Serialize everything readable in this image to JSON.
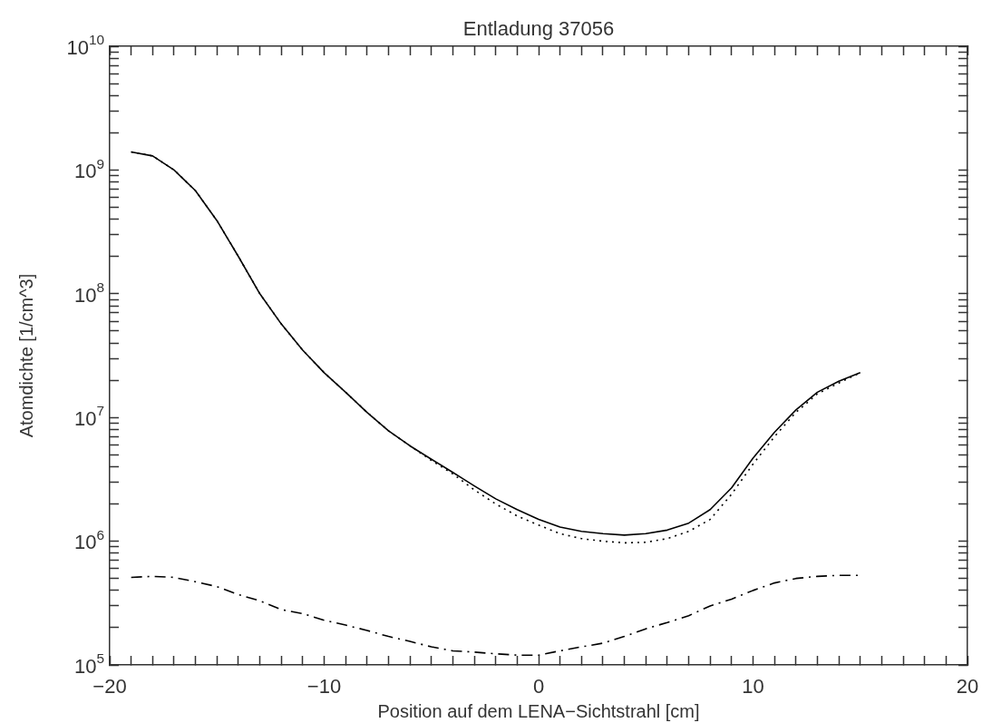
{
  "chart_data": {
    "type": "line",
    "title": "Entladung 37056",
    "xlabel": "Position auf dem LENA−Sichtstrahl [cm]",
    "ylabel": "Atomdichte [1/cm^3]",
    "log": "y",
    "grid": false,
    "legend": false,
    "marker": "none",
    "xlim": [
      -20,
      20
    ],
    "xticks": [
      {
        "value": -20,
        "label": "−20"
      },
      {
        "value": -19,
        "label": null
      },
      {
        "value": -18,
        "label": null
      },
      {
        "value": -17,
        "label": null
      },
      {
        "value": -16,
        "label": null
      },
      {
        "value": -15,
        "label": null
      },
      {
        "value": -14,
        "label": null
      },
      {
        "value": -13,
        "label": null
      },
      {
        "value": -12,
        "label": null
      },
      {
        "value": -11,
        "label": null
      },
      {
        "value": -10,
        "label": "−10"
      },
      {
        "value": -9,
        "label": null
      },
      {
        "value": -8,
        "label": null
      },
      {
        "value": -7,
        "label": null
      },
      {
        "value": -6,
        "label": null
      },
      {
        "value": -5,
        "label": null
      },
      {
        "value": -4,
        "label": null
      },
      {
        "value": -3,
        "label": null
      },
      {
        "value": -2,
        "label": null
      },
      {
        "value": -1,
        "label": null
      },
      0,
      {
        "value": 1,
        "label": null
      },
      {
        "value": 2,
        "label": null
      },
      {
        "value": 3,
        "label": null
      },
      {
        "value": 4,
        "label": null
      },
      {
        "value": 5,
        "label": null
      },
      {
        "value": 6,
        "label": null
      },
      {
        "value": 7,
        "label": null
      },
      {
        "value": 8,
        "label": null
      },
      {
        "value": 9,
        "label": null
      },
      10,
      {
        "value": 11,
        "label": null
      },
      {
        "value": 12,
        "label": null
      },
      {
        "value": 13,
        "label": null
      },
      {
        "value": 14,
        "label": null
      },
      {
        "value": 15,
        "label": null
      },
      {
        "value": 16,
        "label": null
      },
      {
        "value": 17,
        "label": null
      },
      {
        "value": 18,
        "label": null
      },
      {
        "value": 19,
        "label": null
      },
      20
    ],
    "ylim": [
      100000,
      10000000000
    ],
    "yticks": [
      {
        "value": 100000,
        "label": "10$^{5}$"
      },
      {
        "value": 200000,
        "label": null
      },
      {
        "value": 300000,
        "label": null
      },
      {
        "value": 400000,
        "label": null
      },
      {
        "value": 500000,
        "label": null
      },
      {
        "value": 600000,
        "label": null
      },
      {
        "value": 700000,
        "label": null
      },
      {
        "value": 800000,
        "label": null
      },
      {
        "value": 900000,
        "label": null
      },
      {
        "value": 1000000,
        "label": "10$^{6}$"
      },
      {
        "value": 2000000,
        "label": null
      },
      {
        "value": 3000000,
        "label": null
      },
      {
        "value": 4000000,
        "label": null
      },
      {
        "value": 5000000,
        "label": null
      },
      {
        "value": 6000000,
        "label": null
      },
      {
        "value": 7000000,
        "label": null
      },
      {
        "value": 8000000,
        "label": null
      },
      {
        "value": 9000000,
        "label": null
      },
      {
        "value": 10000000,
        "label": "10$^{7}$"
      },
      {
        "value": 20000000,
        "label": null
      },
      {
        "value": 30000000,
        "label": null
      },
      {
        "value": 40000000,
        "label": null
      },
      {
        "value": 50000000,
        "label": null
      },
      {
        "value": 60000000,
        "label": null
      },
      {
        "value": 70000000,
        "label": null
      },
      {
        "value": 80000000,
        "label": null
      },
      {
        "value": 90000000,
        "label": null
      },
      {
        "value": 100000000,
        "label": "10$^{8}$"
      },
      {
        "value": 200000000,
        "label": null
      },
      {
        "value": 300000000,
        "label": null
      },
      {
        "value": 400000000,
        "label": null
      },
      {
        "value": 500000000,
        "label": null
      },
      {
        "value": 600000000,
        "label": null
      },
      {
        "value": 700000000,
        "label": null
      },
      {
        "value": 800000000,
        "label": null
      },
      {
        "value": 900000000,
        "label": null
      },
      {
        "value": 1000000000,
        "label": "10$^{9}$"
      },
      {
        "value": 2000000000,
        "label": null
      },
      {
        "value": 3000000000,
        "label": null
      },
      {
        "value": 4000000000,
        "label": null
      },
      {
        "value": 5000000000,
        "label": null
      },
      {
        "value": 6000000000,
        "label": null
      },
      {
        "value": 7000000000,
        "label": null
      },
      {
        "value": 8000000000,
        "label": null
      },
      {
        "value": 9000000000,
        "label": null
      },
      {
        "value": 10000000000,
        "label": "10$^{10}$"
      }
    ],
    "x": [
      -19,
      -18,
      -17,
      -16,
      -15,
      -14,
      -13,
      -12,
      -11,
      -10,
      -9,
      -8,
      -7,
      -6,
      -5,
      -4,
      -3,
      -2,
      -1,
      0,
      1,
      2,
      3,
      4,
      5,
      6,
      7,
      8,
      9,
      10,
      11,
      12,
      13,
      14,
      15
    ],
    "series": [
      {
        "color": "#000000",
        "line_style": "solid",
        "values": [
          1400000000,
          1300000000,
          1000000000,
          680000000,
          390000000,
          200000000,
          100000000,
          57000000,
          35000000,
          23000000,
          16000000,
          11000000,
          7800000,
          5900000,
          4600000,
          3600000,
          2800000,
          2200000,
          1800000,
          1500000,
          1300000,
          1200000,
          1150000,
          1120000,
          1150000,
          1230000,
          1400000,
          1800000,
          2700000,
          4700000,
          7600000,
          11500000,
          16000000,
          19600000,
          23000000
        ]
      },
      {
        "color": "#000000",
        "line_style": "dotted",
        "values": [
          1400000000,
          1300000000,
          1000000000,
          680000000,
          390000000,
          200000000,
          100000000,
          57000000,
          35000000,
          23000000,
          16000000,
          11000000,
          7800000,
          5900000,
          4500000,
          3500000,
          2600000,
          2000000,
          1600000,
          1350000,
          1150000,
          1050000,
          1000000,
          970000,
          980000,
          1050000,
          1200000,
          1500000,
          2400000,
          4200000,
          7000000,
          11000000,
          15500000,
          19000000,
          23000000
        ]
      },
      {
        "color": "#000000",
        "line_style": "dashdot",
        "values": [
          510000,
          520000,
          510000,
          470000,
          430000,
          370000,
          330000,
          280000,
          260000,
          230000,
          210000,
          190000,
          170000,
          155000,
          140000,
          130000,
          127000,
          123000,
          120000,
          120000,
          130000,
          140000,
          150000,
          170000,
          196000,
          220000,
          250000,
          300000,
          340000,
          400000,
          460000,
          500000,
          520000,
          530000,
          530000
        ]
      }
    ]
  }
}
